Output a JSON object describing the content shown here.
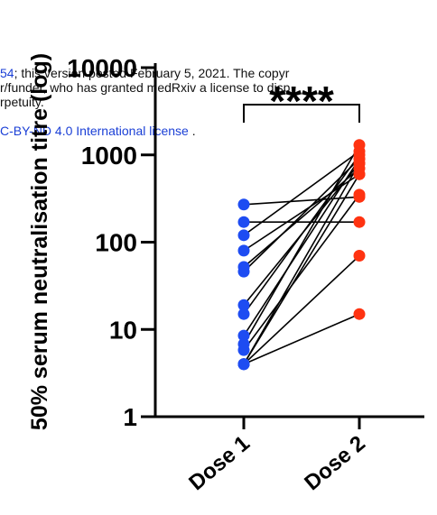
{
  "watermark": {
    "line1_link": "54",
    "line1_text": "; this version posted February 5, 2021. The copyr",
    "line2_text": "r/funder, who has granted medRxiv a license to disp",
    "line3_text": "rpetuity.",
    "line4_link": "C-BY-ND 4.0 International license",
    "line4_text": " ."
  },
  "colors": {
    "dose1": "#1e4cf2",
    "dose2": "#ff3311",
    "axis": "#000000",
    "link": "#1a3fd6"
  },
  "chart_data": {
    "type": "scatter",
    "paired": true,
    "yscale": "log",
    "ylabel": "50% serum neutralisation titre (log)",
    "ylim": [
      1,
      10000
    ],
    "yticks": [
      "1",
      "10",
      "100",
      "1000",
      "10000"
    ],
    "categories": [
      "Dose 1",
      "Dose 2"
    ],
    "significance": "****",
    "series": [
      {
        "category": "Dose 1",
        "values": [
          270,
          170,
          120,
          80,
          52,
          46,
          19,
          15,
          8.5,
          6.8,
          5.8,
          4,
          4,
          4,
          4
        ]
      },
      {
        "category": "Dose 2",
        "values": [
          330,
          170,
          1100,
          600,
          700,
          900,
          800,
          1000,
          900,
          1300,
          350,
          800,
          600,
          70,
          15
        ]
      }
    ]
  }
}
